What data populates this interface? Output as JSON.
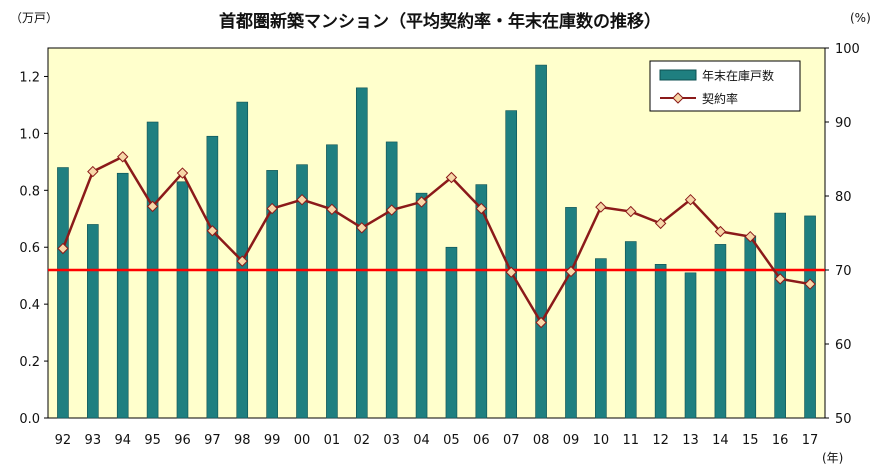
{
  "chart_data": {
    "type": "bar+line",
    "title": "首都圏新築マンション（平均契約率・年末在庫数の推移）",
    "y_left_unit": "（万戸）",
    "y_right_unit": "(%)",
    "x_unit": "(年)",
    "categories": [
      "92",
      "93",
      "94",
      "95",
      "96",
      "97",
      "98",
      "99",
      "00",
      "01",
      "02",
      "03",
      "04",
      "05",
      "06",
      "07",
      "08",
      "09",
      "10",
      "11",
      "12",
      "13",
      "14",
      "15",
      "16",
      "17"
    ],
    "ylim_left": [
      0,
      1.3
    ],
    "yticks_left": [
      "0.0",
      "0.2",
      "0.4",
      "0.6",
      "0.8",
      "1.0",
      "1.2"
    ],
    "ylim_right": [
      50,
      100
    ],
    "yticks_right": [
      "50",
      "60",
      "70",
      "80",
      "90",
      "100"
    ],
    "series": [
      {
        "name": "年末在庫戸数",
        "type": "bar",
        "axis": "left",
        "color": "#1f7f80",
        "values": [
          0.88,
          0.68,
          0.86,
          1.04,
          0.83,
          0.99,
          1.11,
          0.87,
          0.89,
          0.96,
          1.16,
          0.97,
          0.79,
          0.6,
          0.82,
          1.08,
          1.24,
          0.74,
          0.56,
          0.62,
          0.54,
          0.51,
          0.61,
          0.64,
          0.72,
          0.71
        ]
      },
      {
        "name": "契約率",
        "type": "line",
        "axis": "right",
        "color": "#8b1a1a",
        "marker_fill": "#f7d7a8",
        "values": [
          72.9,
          83.3,
          85.3,
          78.6,
          83.1,
          75.3,
          71.2,
          78.3,
          79.5,
          78.2,
          75.7,
          78.1,
          79.2,
          82.5,
          78.3,
          69.7,
          62.9,
          69.8,
          78.5,
          77.9,
          76.3,
          79.5,
          75.2,
          74.5,
          68.8,
          68.1
        ]
      }
    ],
    "reference_line": {
      "axis": "right",
      "value": 70,
      "color": "#ff0000"
    },
    "plot_background": "#ffffcc",
    "grid": false,
    "legend_position": "top-right"
  }
}
